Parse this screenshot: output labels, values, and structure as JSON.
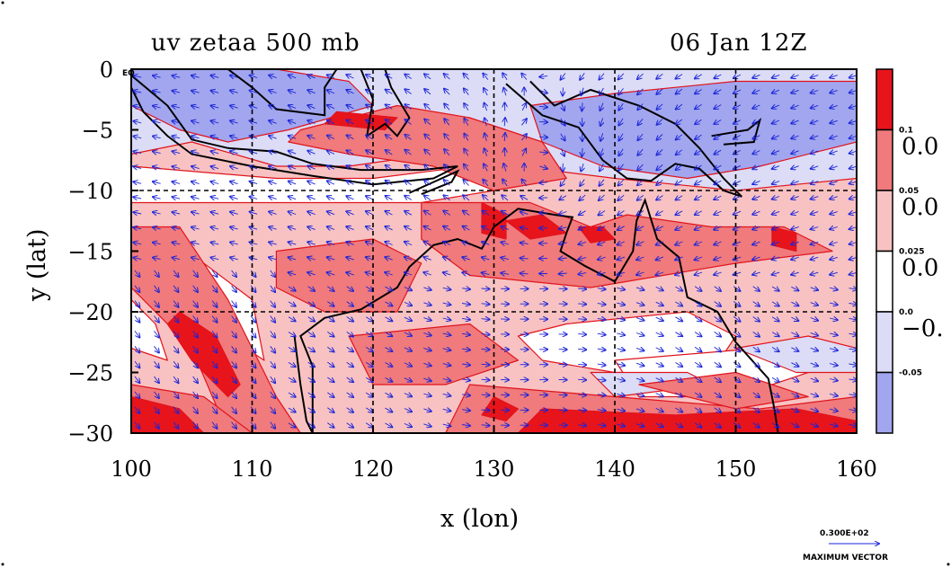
{
  "map": {
    "title_left": "uv zetaa 500 mb",
    "title_right": "06 Jan 12Z",
    "xlabel": "x (lon)",
    "ylabel": "y (lat)",
    "eq_label": "EQ",
    "x_ticks": [
      "100",
      "110",
      "120",
      "130",
      "140",
      "150",
      "160"
    ],
    "y_ticks": [
      "0",
      "−5",
      "−10",
      "−15",
      "−20",
      "−25",
      "−30"
    ],
    "colorbar": {
      "small_labels": [
        "0.1",
        "0.05",
        "0.025",
        "0.0",
        "-0.05"
      ],
      "large_labels": [
        "0.0",
        "0.0",
        "0.0",
        "−0."
      ],
      "colors": [
        "#e8141c",
        "#f07a7c",
        "#f8c2c2",
        "#ffffff",
        "#dcdcf6",
        "#a2a6ee"
      ]
    },
    "vector_scale": {
      "value": "0.300E+02",
      "label": "MAXIMUM VECTOR"
    },
    "colors": {
      "strong_pos": "#e8141c",
      "mid_pos": "#f07a7c",
      "weak_pos": "#f8c2c2",
      "weak_neg": "#dcdcf6",
      "strong_neg": "#a2a6ee",
      "contour": "#e0141c",
      "vector": "#1a24d8",
      "coast": "#000000"
    },
    "chart_data": {
      "type": "heatmap",
      "title": "uv zetaa 500 mb",
      "subtitle": "06 Jan 12Z",
      "xlabel": "x (lon)",
      "ylabel": "y (lat)",
      "xlim": [
        100,
        160
      ],
      "ylim": [
        -30,
        0
      ],
      "levels": [
        -0.05,
        0.0,
        0.025,
        0.05,
        0.1
      ],
      "grid": true
    }
  }
}
